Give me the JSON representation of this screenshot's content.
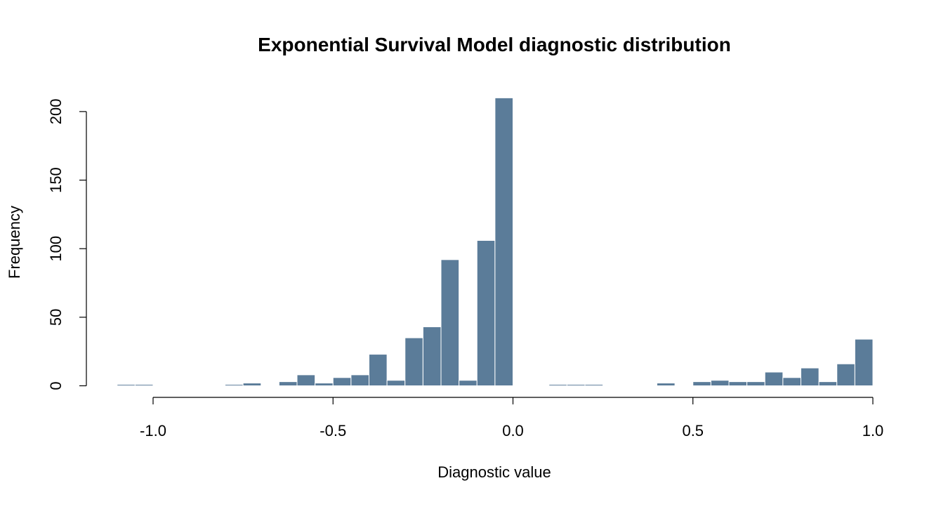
{
  "chart_data": {
    "type": "bar",
    "title": "Exponential Survival Model diagnostic distribution",
    "xlabel": "Diagnostic value",
    "ylabel": "Frequency",
    "bin_width": 0.05,
    "xlim": [
      -1.1,
      1.0
    ],
    "ylim": [
      0,
      210
    ],
    "x_ticks": [
      -1.0,
      -0.5,
      0.0,
      0.5,
      1.0
    ],
    "x_tick_labels": [
      "-1.0",
      "-0.5",
      "0.0",
      "0.5",
      "1.0"
    ],
    "y_ticks": [
      0,
      50,
      100,
      150,
      200
    ],
    "y_tick_labels": [
      "0",
      "50",
      "100",
      "150",
      "200"
    ],
    "bar_color": "#5b7c99",
    "grid": false,
    "bins": [
      {
        "start": -1.1,
        "end": -1.05,
        "count": 1
      },
      {
        "start": -1.05,
        "end": -1.0,
        "count": 1
      },
      {
        "start": -1.0,
        "end": -0.95,
        "count": 0
      },
      {
        "start": -0.95,
        "end": -0.9,
        "count": 0
      },
      {
        "start": -0.9,
        "end": -0.85,
        "count": 0
      },
      {
        "start": -0.85,
        "end": -0.8,
        "count": 0
      },
      {
        "start": -0.8,
        "end": -0.75,
        "count": 1
      },
      {
        "start": -0.75,
        "end": -0.7,
        "count": 2
      },
      {
        "start": -0.7,
        "end": -0.65,
        "count": 0
      },
      {
        "start": -0.65,
        "end": -0.6,
        "count": 3
      },
      {
        "start": -0.6,
        "end": -0.55,
        "count": 8
      },
      {
        "start": -0.55,
        "end": -0.5,
        "count": 2
      },
      {
        "start": -0.5,
        "end": -0.45,
        "count": 6
      },
      {
        "start": -0.45,
        "end": -0.4,
        "count": 8
      },
      {
        "start": -0.4,
        "end": -0.35,
        "count": 23
      },
      {
        "start": -0.35,
        "end": -0.3,
        "count": 4
      },
      {
        "start": -0.3,
        "end": -0.25,
        "count": 35
      },
      {
        "start": -0.25,
        "end": -0.2,
        "count": 43
      },
      {
        "start": -0.2,
        "end": -0.15,
        "count": 92
      },
      {
        "start": -0.15,
        "end": -0.1,
        "count": 4
      },
      {
        "start": -0.1,
        "end": -0.05,
        "count": 106
      },
      {
        "start": -0.05,
        "end": 0.0,
        "count": 210
      },
      {
        "start": 0.0,
        "end": 0.05,
        "count": 0
      },
      {
        "start": 0.05,
        "end": 0.1,
        "count": 0
      },
      {
        "start": 0.1,
        "end": 0.15,
        "count": 1
      },
      {
        "start": 0.15,
        "end": 0.2,
        "count": 1
      },
      {
        "start": 0.2,
        "end": 0.25,
        "count": 1
      },
      {
        "start": 0.25,
        "end": 0.3,
        "count": 0
      },
      {
        "start": 0.3,
        "end": 0.35,
        "count": 0
      },
      {
        "start": 0.35,
        "end": 0.4,
        "count": 0
      },
      {
        "start": 0.4,
        "end": 0.45,
        "count": 2
      },
      {
        "start": 0.45,
        "end": 0.5,
        "count": 0
      },
      {
        "start": 0.5,
        "end": 0.55,
        "count": 3
      },
      {
        "start": 0.55,
        "end": 0.6,
        "count": 4
      },
      {
        "start": 0.6,
        "end": 0.65,
        "count": 3
      },
      {
        "start": 0.65,
        "end": 0.7,
        "count": 3
      },
      {
        "start": 0.7,
        "end": 0.75,
        "count": 10
      },
      {
        "start": 0.75,
        "end": 0.8,
        "count": 6
      },
      {
        "start": 0.8,
        "end": 0.85,
        "count": 13
      },
      {
        "start": 0.85,
        "end": 0.9,
        "count": 3
      },
      {
        "start": 0.9,
        "end": 0.95,
        "count": 16
      },
      {
        "start": 0.95,
        "end": 1.0,
        "count": 34
      }
    ]
  }
}
